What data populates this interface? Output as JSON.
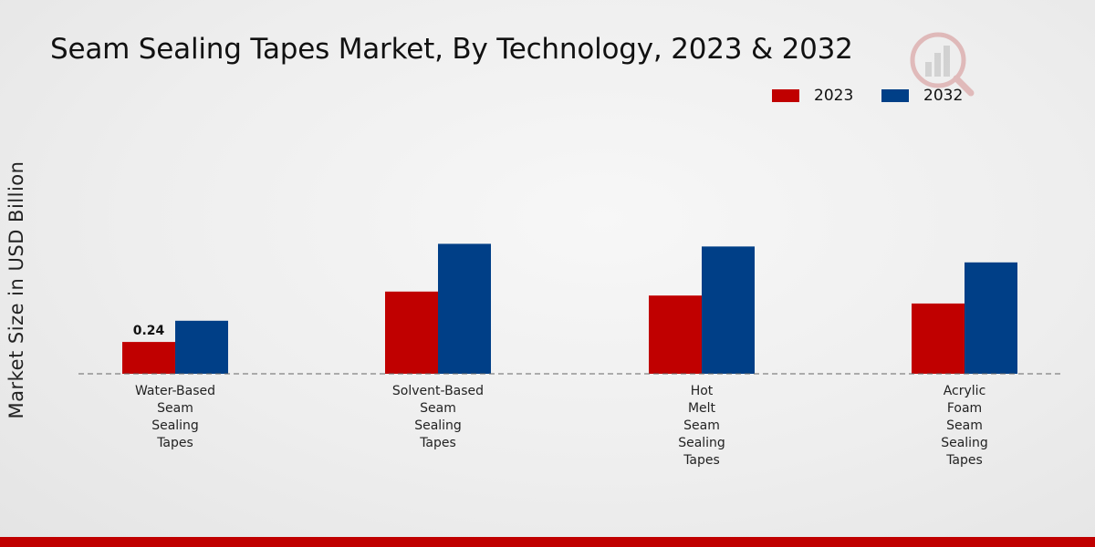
{
  "chart_data": {
    "type": "bar",
    "title": "Seam Sealing Tapes Market, By Technology, 2023 & 2032",
    "xlabel": "",
    "ylabel": "Market Size in USD Billion",
    "categories": [
      [
        "Water-Based",
        "Seam",
        "Sealing",
        "Tapes"
      ],
      [
        "Solvent-Based",
        "Seam",
        "Sealing",
        "Tapes"
      ],
      [
        "Hot",
        "Melt",
        "Seam",
        "Sealing",
        "Tapes"
      ],
      [
        "Acrylic",
        "Foam",
        "Seam",
        "Sealing",
        "Tapes"
      ]
    ],
    "series": [
      {
        "name": "2023",
        "color": "#c00000",
        "values": [
          0.24,
          0.62,
          0.59,
          0.53
        ]
      },
      {
        "name": "2032",
        "color": "#003f87",
        "values": [
          0.4,
          0.98,
          0.96,
          0.84
        ]
      }
    ],
    "data_labels": [
      {
        "series": 0,
        "index": 0,
        "text": "0.24"
      }
    ],
    "ylim": [
      0,
      2.2
    ],
    "grid": false,
    "legend_position": "top-right"
  }
}
